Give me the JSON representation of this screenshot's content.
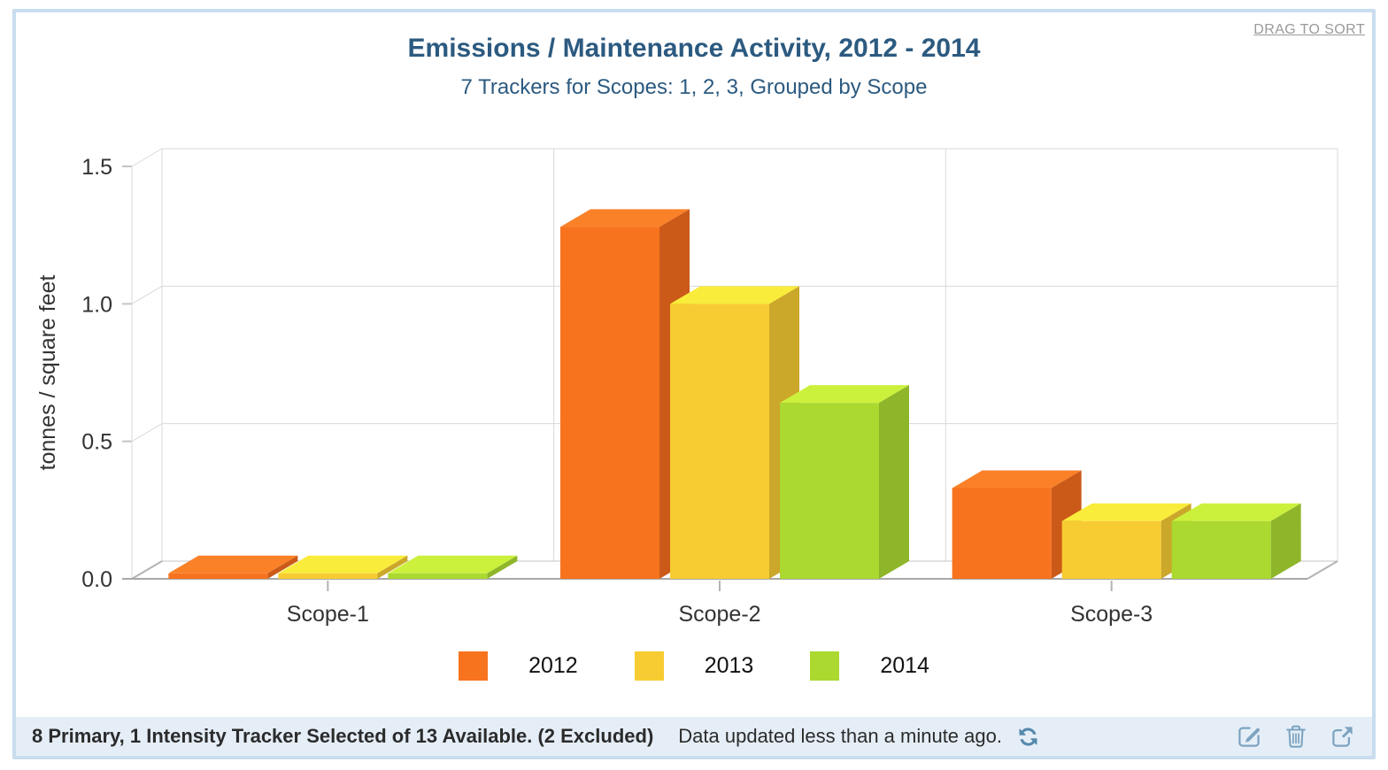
{
  "header": {
    "drag_to_sort_label": "DRAG TO SORT"
  },
  "chart_data": {
    "type": "bar",
    "projection": "3d-column-grouped",
    "title": "Emissions / Maintenance Activity, 2012 - 2014",
    "subtitle": "7 Trackers for Scopes: 1, 2, 3, Grouped by Scope",
    "categories": [
      "Scope-1",
      "Scope-2",
      "Scope-3"
    ],
    "series": [
      {
        "name": "2012",
        "color": "#f8731e",
        "top_color": "#fa8128",
        "side_color": "#cb5a19",
        "values": [
          0.02,
          1.28,
          0.33
        ]
      },
      {
        "name": "2013",
        "color": "#f7cc32",
        "top_color": "#faec3b",
        "side_color": "#cba72a",
        "values": [
          0.02,
          1.0,
          0.21
        ]
      },
      {
        "name": "2014",
        "color": "#abd930",
        "top_color": "#cbf13d",
        "side_color": "#8fb62a",
        "values": [
          0.02,
          0.64,
          0.21
        ]
      }
    ],
    "xlabel": "",
    "ylabel": "tonnes / square feet",
    "ylim": [
      0,
      1.5
    ],
    "yticks": [
      0,
      0.5,
      1,
      1.5
    ],
    "ytick_labels": [
      "0.0",
      "0.5",
      "1.0",
      "1.5"
    ],
    "grid": true,
    "legend_position": "bottom"
  },
  "footer": {
    "summary_bold": "8 Primary, 1 Intensity Tracker Selected of 13 Available. (2 Excluded)",
    "updated_text": "Data updated less than a minute ago.",
    "icons": [
      "refresh-icon",
      "edit-icon",
      "trash-icon",
      "external-link-icon"
    ]
  },
  "colors": {
    "card_border": "#c9ddee",
    "heading_text": "#2c5a80",
    "axis_text": "#333333",
    "grid_line": "#d9d9d9",
    "axis_line": "#a8a8a8",
    "footer_background": "#e5eef7",
    "footer_text": "#2b2b2b",
    "refresh_icon": "#5589ad",
    "action_icon": "#7da3c1",
    "drag_label": "#9a9a9a"
  }
}
